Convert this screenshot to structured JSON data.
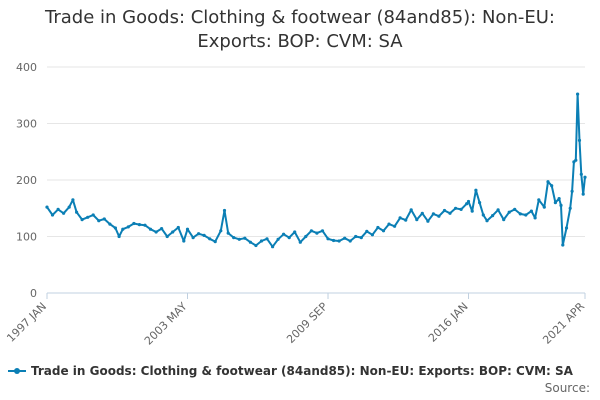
{
  "chart_data": {
    "type": "line",
    "title_lines": [
      "Trade in Goods: Clothing & footwear (84and85): Non-EU:",
      "Exports: BOP: CVM: SA"
    ],
    "xlabel": "",
    "ylabel": "",
    "ylim": [
      0,
      400
    ],
    "yticks": [
      0,
      100,
      200,
      300,
      400
    ],
    "xlim": [
      "1997 JAN",
      "2021 APR"
    ],
    "xticks": [
      "1997 JAN",
      "2003 MAY",
      "2009 SEP",
      "2016 JAN",
      "2021 APR"
    ],
    "grid": "horizontal",
    "legend_position": "bottom-left",
    "series": [
      {
        "name": "Trade in Goods: Clothing & footwear (84and85): Non-EU: Exports: BOP: CVM: SA",
        "color": "#0b7fb5",
        "points": [
          [
            "1997 JAN",
            152
          ],
          [
            "1997 APR",
            138
          ],
          [
            "1997 JUL",
            148
          ],
          [
            "1997 OCT",
            141
          ],
          [
            "1998 JAN",
            152
          ],
          [
            "1998 MAR",
            165
          ],
          [
            "1998 MAY",
            143
          ],
          [
            "1998 AUG",
            130
          ],
          [
            "1998 NOV",
            134
          ],
          [
            "1999 FEB",
            138
          ],
          [
            "1999 MAY",
            128
          ],
          [
            "1999 AUG",
            131
          ],
          [
            "1999 NOV",
            122
          ],
          [
            "2000 FEB",
            115
          ],
          [
            "2000 APR",
            100
          ],
          [
            "2000 JUN",
            113
          ],
          [
            "2000 SEP",
            117
          ],
          [
            "2000 DEC",
            123
          ],
          [
            "2001 MAR",
            121
          ],
          [
            "2001 JUN",
            120
          ],
          [
            "2001 SEP",
            113
          ],
          [
            "2001 DEC",
            108
          ],
          [
            "2002 MAR",
            114
          ],
          [
            "2002 JUN",
            100
          ],
          [
            "2002 SEP",
            108
          ],
          [
            "2002 DEC",
            116
          ],
          [
            "2003 MAR",
            92
          ],
          [
            "2003 MAY",
            113
          ],
          [
            "2003 AUG",
            98
          ],
          [
            "2003 NOV",
            105
          ],
          [
            "2004 FEB",
            102
          ],
          [
            "2004 MAY",
            96
          ],
          [
            "2004 AUG",
            91
          ],
          [
            "2004 NOV",
            110
          ],
          [
            "2005 JAN",
            146
          ],
          [
            "2005 MAR",
            106
          ],
          [
            "2005 JUN",
            98
          ],
          [
            "2005 SEP",
            95
          ],
          [
            "2005 DEC",
            97
          ],
          [
            "2006 MAR",
            90
          ],
          [
            "2006 JUN",
            84
          ],
          [
            "2006 SEP",
            92
          ],
          [
            "2006 DEC",
            96
          ],
          [
            "2007 MAR",
            82
          ],
          [
            "2007 JUN",
            95
          ],
          [
            "2007 SEP",
            104
          ],
          [
            "2007 DEC",
            98
          ],
          [
            "2008 MAR",
            108
          ],
          [
            "2008 JUN",
            90
          ],
          [
            "2008 SEP",
            100
          ],
          [
            "2008 DEC",
            110
          ],
          [
            "2009 MAR",
            106
          ],
          [
            "2009 JUN",
            110
          ],
          [
            "2009 SEP",
            96
          ],
          [
            "2009 DEC",
            93
          ],
          [
            "2010 MAR",
            92
          ],
          [
            "2010 JUN",
            97
          ],
          [
            "2010 SEP",
            92
          ],
          [
            "2010 DEC",
            100
          ],
          [
            "2011 MAR",
            98
          ],
          [
            "2011 JUN",
            109
          ],
          [
            "2011 SEP",
            103
          ],
          [
            "2011 DEC",
            116
          ],
          [
            "2012 MAR",
            110
          ],
          [
            "2012 JUN",
            122
          ],
          [
            "2012 SEP",
            118
          ],
          [
            "2012 DEC",
            133
          ],
          [
            "2013 MAR",
            129
          ],
          [
            "2013 JUN",
            147
          ],
          [
            "2013 SEP",
            130
          ],
          [
            "2013 DEC",
            141
          ],
          [
            "2014 MAR",
            127
          ],
          [
            "2014 JUN",
            140
          ],
          [
            "2014 SEP",
            136
          ],
          [
            "2014 DEC",
            146
          ],
          [
            "2015 MAR",
            141
          ],
          [
            "2015 JUN",
            150
          ],
          [
            "2015 SEP",
            148
          ],
          [
            "2015 DEC",
            158
          ],
          [
            "2016 JAN",
            162
          ],
          [
            "2016 MAR",
            145
          ],
          [
            "2016 MAY",
            182
          ],
          [
            "2016 JUL",
            160
          ],
          [
            "2016 SEP",
            138
          ],
          [
            "2016 NOV",
            128
          ],
          [
            "2017 FEB",
            137
          ],
          [
            "2017 MAY",
            147
          ],
          [
            "2017 AUG",
            130
          ],
          [
            "2017 NOV",
            143
          ],
          [
            "2018 FEB",
            148
          ],
          [
            "2018 MAY",
            140
          ],
          [
            "2018 AUG",
            138
          ],
          [
            "2018 NOV",
            145
          ],
          [
            "2019 JAN",
            133
          ],
          [
            "2019 MAR",
            165
          ],
          [
            "2019 JUN",
            152
          ],
          [
            "2019 AUG",
            197
          ],
          [
            "2019 OCT",
            190
          ],
          [
            "2019 DEC",
            160
          ],
          [
            "2020 FEB",
            167
          ],
          [
            "2020 MAR",
            155
          ],
          [
            "2020 APR",
            85
          ],
          [
            "2020 JUN",
            115
          ],
          [
            "2020 AUG",
            150
          ],
          [
            "2020 SEP",
            180
          ],
          [
            "2020 OCT",
            232
          ],
          [
            "2020 NOV",
            235
          ],
          [
            "2020 DEC",
            352
          ],
          [
            "2021 JAN",
            270
          ],
          [
            "2021 FEB",
            210
          ],
          [
            "2021 MAR",
            175
          ],
          [
            "2021 APR",
            205
          ]
        ]
      }
    ],
    "source_label": "Source:"
  }
}
